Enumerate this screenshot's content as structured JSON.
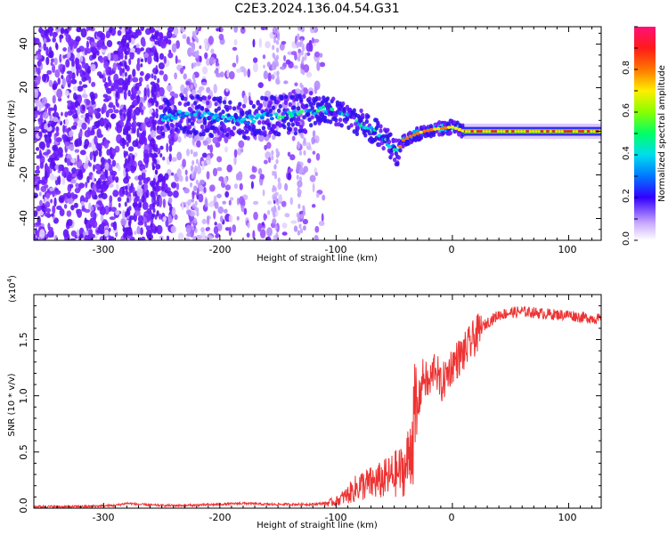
{
  "title": "C2E3.2024.136.04.54.G31",
  "chart_data": [
    {
      "type": "heatmap",
      "xlabel": "Height of straight line (km)",
      "ylabel": "Frequency (Hz)",
      "xlim": [
        -360,
        128
      ],
      "ylim": [
        -50,
        48
      ],
      "xticks": [
        "-300",
        "-200",
        "-100",
        "0",
        "100"
      ],
      "yticks": [
        "-40",
        "-20",
        "0",
        "20",
        "40"
      ],
      "ridge": [
        [
          -250,
          6
        ],
        [
          -230,
          8
        ],
        [
          -210,
          7
        ],
        [
          -180,
          5
        ],
        [
          -160,
          7
        ],
        [
          -130,
          8
        ],
        [
          -110,
          10
        ],
        [
          -95,
          8
        ],
        [
          -80,
          4
        ],
        [
          -65,
          0
        ],
        [
          -55,
          -5
        ],
        [
          -48,
          -10
        ],
        [
          -42,
          -4
        ],
        [
          -35,
          -2
        ],
        [
          -25,
          0
        ],
        [
          -15,
          1
        ],
        [
          0,
          2
        ],
        [
          10,
          0
        ],
        [
          30,
          0
        ],
        [
          128,
          0
        ]
      ],
      "colorbar": {
        "label": "Normalized spectral amplitude",
        "range": [
          0,
          1
        ],
        "ticks": [
          "0.0",
          "0.2",
          "0.4",
          "0.6",
          "0.8"
        ]
      }
    },
    {
      "type": "line",
      "xlabel": "Height of straight line (km)",
      "ylabel": "SNR (10 * v/v)",
      "yscale_label": "(x10",
      "yscale_exp": "4",
      "yscale_close": ")",
      "xlim": [
        -360,
        128
      ],
      "ylim": [
        0,
        1.9
      ],
      "xticks": [
        "-300",
        "-200",
        "-100",
        "0",
        "100"
      ],
      "yticks": [
        "0.0",
        "0.5",
        "1.0",
        "1.5"
      ],
      "color": "#ee3333",
      "series": [
        {
          "x": [
            -360,
            -320,
            -290,
            -280,
            -270,
            -250,
            -230,
            -200,
            -180,
            -160,
            -140,
            -120,
            -110,
            -100,
            -90,
            -80,
            -70,
            -60,
            -50,
            -40,
            -35,
            -30,
            -25,
            -20,
            -15,
            -10,
            -5,
            0,
            10,
            20,
            30,
            40,
            50,
            60,
            70,
            80,
            90,
            100,
            110,
            128
          ],
          "y": [
            0.01,
            0.01,
            0.02,
            0.04,
            0.03,
            0.02,
            0.02,
            0.03,
            0.04,
            0.03,
            0.03,
            0.03,
            0.04,
            0.06,
            0.12,
            0.2,
            0.22,
            0.25,
            0.3,
            0.35,
            0.6,
            0.9,
            1.2,
            1.1,
            1.3,
            1.1,
            1.2,
            1.3,
            1.4,
            1.55,
            1.65,
            1.72,
            1.74,
            1.75,
            1.74,
            1.73,
            1.72,
            1.72,
            1.7,
            1.68
          ]
        }
      ]
    }
  ]
}
